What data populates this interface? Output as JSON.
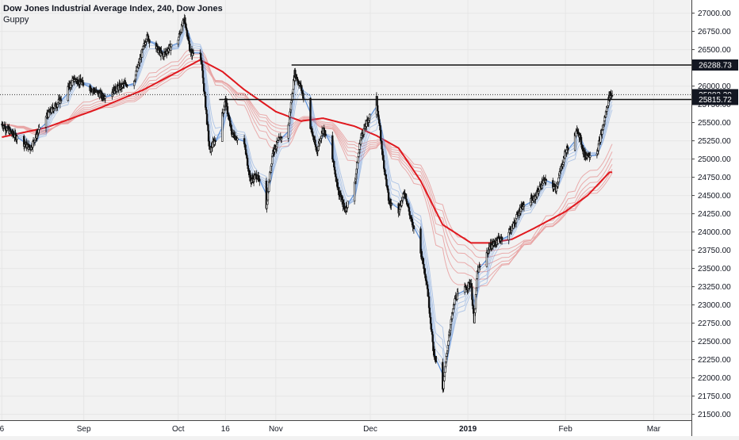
{
  "header": {
    "title": "Dow Jones Industrial Average Index, 240, Dow Jones",
    "indicator": "Guppy"
  },
  "colors": {
    "background": "#f2f2f2",
    "axis_panel": "#ffffff",
    "candle": "#111111",
    "short_ema": "#5b8fd9",
    "long_ema": "#e8a3a3",
    "long_ema_slowest": "#e0191f",
    "level_line": "#111111",
    "tag_bg": "#131722",
    "tag_text": "#ffffff"
  },
  "chart_data": {
    "type": "line",
    "description_of_series": "4-hour candles with Guppy multiple moving averages",
    "x_ticks": [
      "6",
      "Sep",
      "Oct",
      "16",
      "Nov",
      "Dec",
      "2019",
      "Feb",
      "Mar"
    ],
    "x_tick_dates": [
      "2018-08-06",
      "2018-09-01",
      "2018-10-01",
      "2018-10-16",
      "2018-11-01",
      "2018-12-01",
      "2019-01-01",
      "2019-02-01",
      "2019-03-01"
    ],
    "x_range": [
      "2018-08-06",
      "2019-03-01"
    ],
    "y_ticks": [
      27000,
      26750,
      26500,
      26250,
      26000,
      25750,
      25500,
      25250,
      25000,
      24750,
      24500,
      24250,
      24000,
      23750,
      23500,
      23250,
      23000,
      22750,
      22500,
      22250,
      22000,
      21750,
      21500
    ],
    "y_tick_labels": [
      "27000.00",
      "26750.00",
      "26500.00",
      "26250.00",
      "26000.00",
      "25750.00",
      "25500.00",
      "25250.00",
      "25000.00",
      "24750.00",
      "24500.00",
      "24250.00",
      "24000.00",
      "23750.00",
      "23500.00",
      "23250.00",
      "23000.00",
      "22750.00",
      "22500.00",
      "22250.00",
      "22000.00",
      "21750.00",
      "21500.00"
    ],
    "ylim": [
      21420,
      27180
    ],
    "price_tags": [
      {
        "label": "26288.73",
        "value": 26288.73,
        "kind": "level"
      },
      {
        "label": "25882.30",
        "value": 25882.3,
        "kind": "last"
      },
      {
        "label": "25815.72",
        "value": 25815.72,
        "kind": "level"
      }
    ],
    "horizontal_levels": [
      {
        "value": 26288.73,
        "from": "2018-11-06",
        "to": "2019-03-01"
      },
      {
        "value": 25815.72,
        "from": "2018-10-14",
        "to": "2019-03-01"
      }
    ],
    "price_path": [
      [
        "2018-08-06",
        25480
      ],
      [
        "2018-08-10",
        25320
      ],
      [
        "2018-08-15",
        25150
      ],
      [
        "2018-08-20",
        25580
      ],
      [
        "2018-08-24",
        25780
      ],
      [
        "2018-08-29",
        26100
      ],
      [
        "2018-09-04",
        25950
      ],
      [
        "2018-09-07",
        25860
      ],
      [
        "2018-09-12",
        25980
      ],
      [
        "2018-09-17",
        26080
      ],
      [
        "2018-09-21",
        26680
      ],
      [
        "2018-09-26",
        26420
      ],
      [
        "2018-10-01",
        26650
      ],
      [
        "2018-10-03",
        26920
      ],
      [
        "2018-10-05",
        26450
      ],
      [
        "2018-10-08",
        26480
      ],
      [
        "2018-10-10",
        25600
      ],
      [
        "2018-10-11",
        25100
      ],
      [
        "2018-10-14",
        25400
      ],
      [
        "2018-10-16",
        25800
      ],
      [
        "2018-10-18",
        25350
      ],
      [
        "2018-10-22",
        25200
      ],
      [
        "2018-10-24",
        24700
      ],
      [
        "2018-10-26",
        24780
      ],
      [
        "2018-10-29",
        24350
      ],
      [
        "2018-10-31",
        25100
      ],
      [
        "2018-11-02",
        25250
      ],
      [
        "2018-11-05",
        25450
      ],
      [
        "2018-11-07",
        26180
      ],
      [
        "2018-11-09",
        25980
      ],
      [
        "2018-11-12",
        25450
      ],
      [
        "2018-11-14",
        25100
      ],
      [
        "2018-11-16",
        25420
      ],
      [
        "2018-11-19",
        25000
      ],
      [
        "2018-11-21",
        24550
      ],
      [
        "2018-11-23",
        24300
      ],
      [
        "2018-11-26",
        24650
      ],
      [
        "2018-11-28",
        25300
      ],
      [
        "2018-11-30",
        25500
      ],
      [
        "2018-12-03",
        25820
      ],
      [
        "2018-12-05",
        25020
      ],
      [
        "2018-12-07",
        24400
      ],
      [
        "2018-12-10",
        24300
      ],
      [
        "2018-12-12",
        24550
      ],
      [
        "2018-12-14",
        24150
      ],
      [
        "2018-12-17",
        23750
      ],
      [
        "2018-12-19",
        23300
      ],
      [
        "2018-12-21",
        22400
      ],
      [
        "2018-12-24",
        21800
      ],
      [
        "2018-12-26",
        22600
      ],
      [
        "2018-12-28",
        23100
      ],
      [
        "2019-01-02",
        23300
      ],
      [
        "2019-01-03",
        22750
      ],
      [
        "2019-01-04",
        23450
      ],
      [
        "2019-01-08",
        23800
      ],
      [
        "2019-01-11",
        23900
      ],
      [
        "2019-01-15",
        24050
      ],
      [
        "2019-01-18",
        24350
      ],
      [
        "2019-01-22",
        24450
      ],
      [
        "2019-01-25",
        24700
      ],
      [
        "2019-01-29",
        24600
      ],
      [
        "2019-02-01",
        25100
      ],
      [
        "2019-02-05",
        25400
      ],
      [
        "2019-02-07",
        25050
      ],
      [
        "2019-02-11",
        25100
      ],
      [
        "2019-02-13",
        25450
      ],
      [
        "2019-02-15",
        25880
      ]
    ],
    "slowest_ema_path": [
      [
        "2018-08-06",
        25300
      ],
      [
        "2018-08-20",
        25430
      ],
      [
        "2018-09-05",
        25680
      ],
      [
        "2018-09-20",
        25950
      ],
      [
        "2018-10-01",
        26200
      ],
      [
        "2018-10-08",
        26360
      ],
      [
        "2018-10-15",
        26200
      ],
      [
        "2018-10-22",
        25950
      ],
      [
        "2018-11-01",
        25650
      ],
      [
        "2018-11-09",
        25520
      ],
      [
        "2018-11-16",
        25560
      ],
      [
        "2018-11-26",
        25450
      ],
      [
        "2018-12-03",
        25320
      ],
      [
        "2018-12-10",
        25150
      ],
      [
        "2018-12-17",
        24700
      ],
      [
        "2018-12-24",
        24100
      ],
      [
        "2019-01-02",
        23850
      ],
      [
        "2019-01-08",
        23850
      ],
      [
        "2019-01-15",
        23900
      ],
      [
        "2019-01-22",
        24050
      ],
      [
        "2019-02-01",
        24280
      ],
      [
        "2019-02-08",
        24500
      ],
      [
        "2019-02-15",
        24820
      ]
    ],
    "ema_band_widths": {
      "short": [
        10,
        25,
        40,
        55,
        70,
        90
      ],
      "long": [
        40,
        70,
        100,
        130,
        160
      ]
    }
  }
}
